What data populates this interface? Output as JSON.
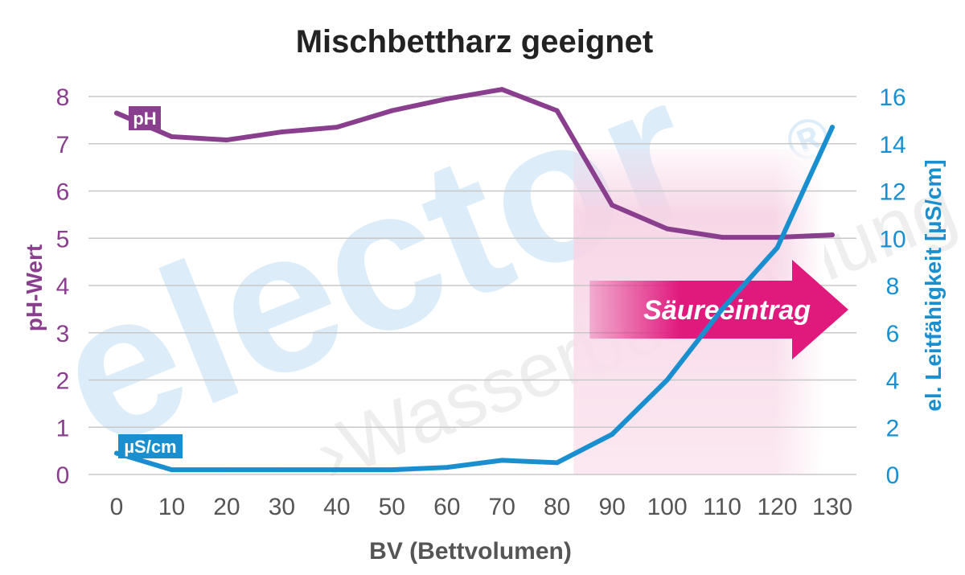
{
  "chart_data": {
    "type": "line",
    "title": "Mischbettharz geeignet",
    "xlabel": "BV (Bettvolumen)",
    "ylabel_left": "pH-Wert",
    "ylabel_right": "el. Leitfähigkeit [µS/cm]",
    "x": [
      0,
      10,
      20,
      30,
      40,
      50,
      60,
      70,
      80,
      90,
      100,
      110,
      120,
      130
    ],
    "xlim": [
      0,
      130
    ],
    "ylim_left": [
      0,
      8
    ],
    "ylim_right": [
      0,
      16
    ],
    "x_ticks": [
      "0",
      "10",
      "20",
      "30",
      "40",
      "50",
      "60",
      "70",
      "80",
      "90",
      "100",
      "110",
      "120",
      "130"
    ],
    "y_ticks_left": [
      "0",
      "1",
      "2",
      "3",
      "4",
      "5",
      "6",
      "7",
      "8"
    ],
    "y_ticks_right": [
      "0",
      "2",
      "4",
      "6",
      "8",
      "10",
      "12",
      "14",
      "16"
    ],
    "grid": true,
    "series": [
      {
        "name": "pH",
        "axis": "left",
        "color": "#8a3f8e",
        "values": [
          7.65,
          7.15,
          7.08,
          7.25,
          7.35,
          7.7,
          7.95,
          8.15,
          7.7,
          5.7,
          5.2,
          5.02,
          5.02,
          5.07
        ]
      },
      {
        "name": "µS/cm",
        "axis": "right",
        "color": "#1a8fcf",
        "values": [
          0.9,
          0.2,
          0.2,
          0.2,
          0.2,
          0.2,
          0.3,
          0.6,
          0.5,
          1.7,
          4.0,
          7.0,
          9.6,
          14.7
        ]
      }
    ],
    "annotations": [
      {
        "text": "Säureeintrag",
        "type": "arrow",
        "x_start": 83,
        "x_end": 130,
        "color": "#e0197d"
      }
    ]
  },
  "watermark": {
    "brand": "elector",
    "registered": "®",
    "tagline": "›Wasserbehandlung"
  }
}
